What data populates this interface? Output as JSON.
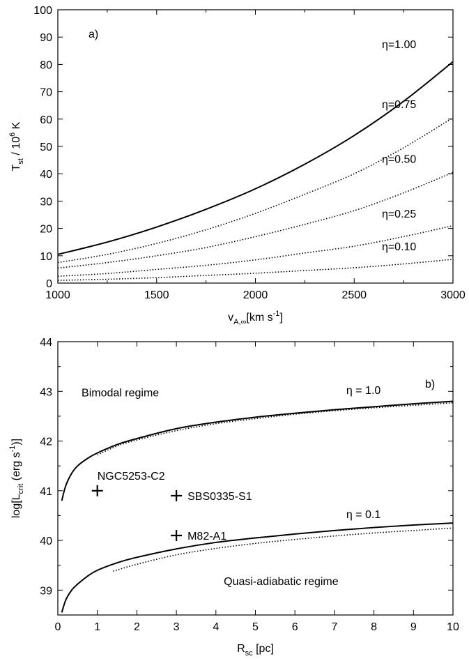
{
  "chart_data": [
    {
      "type": "line",
      "panel_label": "a)",
      "xlabel": "v",
      "xlabel_sub": "A,∞",
      "xlabel_unit": "[km s",
      "xlabel_unit_sup": "-1",
      "xlabel_unit_end": "]",
      "ylabel": "T",
      "ylabel_sub": "st",
      "ylabel_mid": " / 10",
      "ylabel_sup": "6",
      "ylabel_end": " K",
      "xlim": [
        1000,
        3000
      ],
      "ylim": [
        0,
        100
      ],
      "xticks": [
        "1000",
        "1500",
        "2000",
        "2500",
        "3000"
      ],
      "yticks": [
        "0",
        "10",
        "20",
        "30",
        "40",
        "50",
        "60",
        "70",
        "80",
        "90",
        "100"
      ],
      "series": [
        {
          "name": "η=1.00",
          "style": "solid",
          "x": [
            1000,
            1250,
            1500,
            1750,
            2000,
            2250,
            2500,
            2750,
            3000
          ],
          "y": [
            10.5,
            15,
            20.5,
            27,
            34.5,
            43.5,
            54,
            66.5,
            81
          ]
        },
        {
          "name": "η=0.75",
          "style": "dotted",
          "x": [
            1000,
            1250,
            1500,
            1750,
            2000,
            2250,
            2500,
            2750,
            3000
          ],
          "y": [
            7.5,
            10.5,
            14.5,
            19.5,
            25.5,
            32.5,
            40,
            49.5,
            60.5
          ]
        },
        {
          "name": "η=0.50",
          "style": "dotted",
          "x": [
            1000,
            1250,
            1500,
            1750,
            2000,
            2250,
            2500,
            2750,
            3000
          ],
          "y": [
            5.5,
            7.5,
            10,
            13,
            17,
            21.5,
            26.5,
            33,
            40.5
          ]
        },
        {
          "name": "η=0.25",
          "style": "dotted",
          "x": [
            1000,
            1250,
            1500,
            1750,
            2000,
            2250,
            2500,
            2750,
            3000
          ],
          "y": [
            2.5,
            3.5,
            5,
            6.5,
            8.5,
            11,
            13.5,
            17,
            21
          ]
        },
        {
          "name": "η=0.10",
          "style": "dotted",
          "x": [
            1000,
            1250,
            1500,
            1750,
            2000,
            2250,
            2500,
            2750,
            3000
          ],
          "y": [
            1,
            1.4,
            2,
            2.8,
            3.6,
            4.6,
            5.6,
            7,
            8.7
          ]
        }
      ],
      "annotations": [
        {
          "text": "η=1.00",
          "x": 2640,
          "y": 86
        },
        {
          "text": "η=0.75",
          "x": 2640,
          "y": 64
        },
        {
          "text": "η=0.50",
          "x": 2640,
          "y": 44
        },
        {
          "text": "η=0.25",
          "x": 2640,
          "y": 24
        },
        {
          "text": "η=0.10",
          "x": 2640,
          "y": 12
        }
      ]
    },
    {
      "type": "line",
      "panel_label": "b)",
      "xlabel": "R",
      "xlabel_sub": "sc",
      "xlabel_unit": " [pc]",
      "ylabel": "log[L",
      "ylabel_sub": "crit",
      "ylabel_mid": " (erg s",
      "ylabel_sup": "-1",
      "ylabel_end": ")]",
      "xlim": [
        0,
        10
      ],
      "ylim": [
        38.5,
        44
      ],
      "xticks": [
        "0",
        "1",
        "2",
        "3",
        "4",
        "5",
        "6",
        "7",
        "8",
        "9",
        "10"
      ],
      "yticks": [
        "39",
        "40",
        "41",
        "42",
        "43",
        "44"
      ],
      "series": [
        {
          "name": "η = 1.0",
          "style": "solid",
          "x": [
            0.1,
            0.2,
            0.35,
            0.5,
            0.75,
            1,
            1.5,
            2,
            3,
            4,
            5,
            6,
            7,
            8,
            9,
            10
          ],
          "y": [
            40.8,
            41.1,
            41.35,
            41.5,
            41.65,
            41.76,
            41.93,
            42.05,
            42.25,
            42.38,
            42.48,
            42.56,
            42.63,
            42.69,
            42.75,
            42.8
          ]
        },
        {
          "name": "",
          "style": "dotted",
          "x": [
            1,
            1.5,
            2,
            3,
            4,
            5,
            6,
            7,
            8,
            9,
            10
          ],
          "y": [
            41.72,
            41.9,
            42.02,
            42.21,
            42.35,
            42.45,
            42.54,
            42.61,
            42.67,
            42.72,
            42.77
          ]
        },
        {
          "name": "η = 0.1",
          "style": "solid",
          "x": [
            0.1,
            0.2,
            0.35,
            0.5,
            0.75,
            1,
            1.5,
            2,
            3,
            4,
            5,
            6,
            7,
            8,
            9,
            10
          ],
          "y": [
            38.55,
            38.8,
            39.0,
            39.12,
            39.28,
            39.4,
            39.55,
            39.66,
            39.83,
            39.96,
            40.05,
            40.13,
            40.2,
            40.26,
            40.31,
            40.35
          ]
        },
        {
          "name": "",
          "style": "dotted",
          "x": [
            1.4,
            2,
            3,
            4,
            5,
            6,
            7,
            8,
            9,
            10
          ],
          "y": [
            39.38,
            39.52,
            39.71,
            39.84,
            39.94,
            40.02,
            40.09,
            40.15,
            40.2,
            40.25
          ]
        }
      ],
      "points": [
        {
          "label": "NGC5253-C2",
          "x": 1,
          "y": 41.0
        },
        {
          "label": "SBS0335-S1",
          "x": 3,
          "y": 40.9
        },
        {
          "label": "M82-A1",
          "x": 3,
          "y": 40.1
        }
      ],
      "annotations": [
        {
          "text": "Bimodal regime",
          "x": 0.6,
          "y": 42.9
        },
        {
          "text": "Quasi-adiabatic regime",
          "x": 4.2,
          "y": 39.1
        },
        {
          "text": "η = 1.0",
          "x": 7.3,
          "y": 42.95
        },
        {
          "text": "η = 0.1",
          "x": 7.3,
          "y": 40.45
        }
      ]
    }
  ]
}
